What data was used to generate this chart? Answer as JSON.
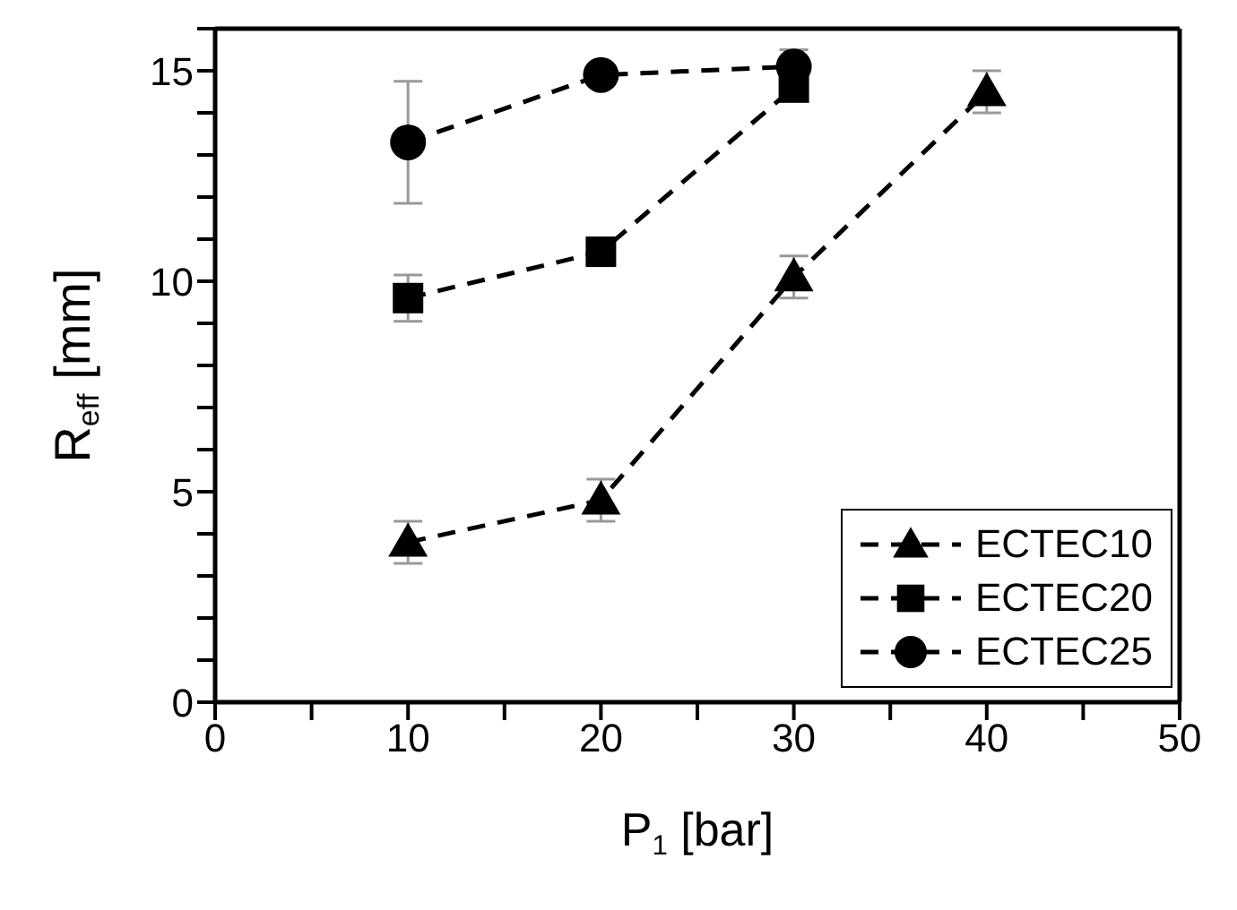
{
  "chart_data": {
    "type": "line",
    "xlabel": "P$_{1}$ [bar]",
    "ylabel": "R$_{eff}$ [mm]",
    "x": [
      10,
      20,
      30,
      40
    ],
    "xlim": [
      0,
      50
    ],
    "xticks": [
      0,
      {
        "value": 5,
        "label": null
      },
      10,
      {
        "value": 15,
        "label": null
      },
      20,
      {
        "value": 25,
        "label": null
      },
      30,
      {
        "value": 35,
        "label": null
      },
      40,
      {
        "value": 45,
        "label": null
      },
      50
    ],
    "ylim": [
      0,
      16
    ],
    "yticks": [
      0,
      {
        "value": 1,
        "label": null
      },
      {
        "value": 2,
        "label": null
      },
      {
        "value": 3,
        "label": null
      },
      {
        "value": 4,
        "label": null
      },
      5,
      {
        "value": 6,
        "label": null
      },
      {
        "value": 7,
        "label": null
      },
      {
        "value": 8,
        "label": null
      },
      {
        "value": 9,
        "label": null
      },
      10,
      {
        "value": 11,
        "label": null
      },
      {
        "value": 12,
        "label": null
      },
      {
        "value": 13,
        "label": null
      },
      {
        "value": 14,
        "label": null
      },
      15,
      {
        "value": 16,
        "label": null
      }
    ],
    "grid": false,
    "legend": "bottom right",
    "line_style": "dashed",
    "series": [
      {
        "name": "ECTEC10",
        "color": "#000000",
        "marker": "triangle",
        "values": [
          3.8,
          4.8,
          10.1,
          14.5
        ],
        "errors": [
          0.5,
          0.5,
          0.5,
          0.5
        ]
      },
      {
        "name": "ECTEC20",
        "color": "#000000",
        "marker": "square",
        "values": [
          9.6,
          10.7,
          14.6,
          null
        ],
        "errors": [
          0.55,
          0.3,
          0.3,
          null
        ]
      },
      {
        "name": "ECTEC25",
        "color": "#000000",
        "marker": "circle",
        "values": [
          13.3,
          14.9,
          15.1,
          null
        ],
        "errors": [
          1.45,
          0.2,
          0.4,
          null
        ]
      }
    ]
  }
}
